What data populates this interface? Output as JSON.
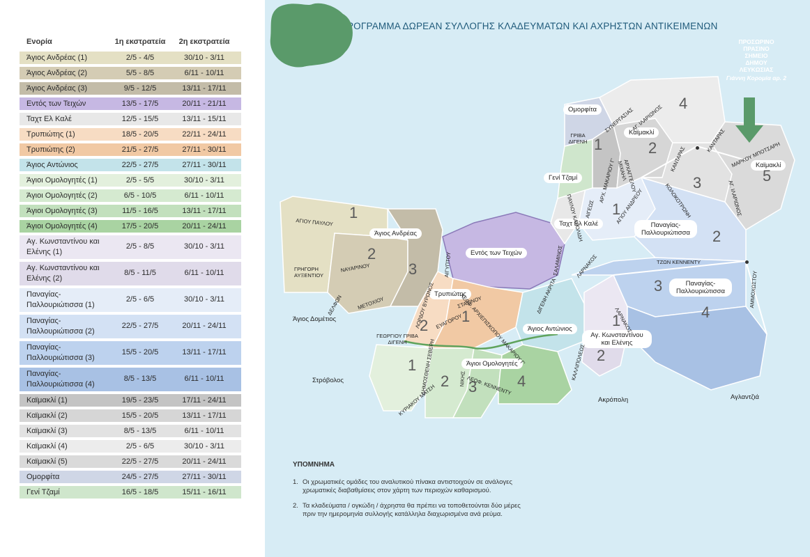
{
  "table": {
    "header": [
      "Ενορία",
      "1η εκστρατεία",
      "2η εκστρατεία"
    ],
    "rows": [
      {
        "parish": "Άγιος Ανδρέας (1)",
        "first": "2/5 - 4/5",
        "second": "30/10 - 3/11",
        "color": "#e4e0c4"
      },
      {
        "parish": "Άγιος Ανδρέας (2)",
        "first": "5/5 - 8/5",
        "second": "6/11 - 10/11",
        "color": "#d4ccb4"
      },
      {
        "parish": "Άγιος Ανδρέας (3)",
        "first": "9/5 - 12/5",
        "second": "13/11 - 17/11",
        "color": "#c3bca8"
      },
      {
        "parish": "Εντός των Τειχών",
        "first": "13/5 - 17/5",
        "second": "20/11 - 21/11",
        "color": "#c6b8e3"
      },
      {
        "parish": "Ταχτ Ελ Καλέ",
        "first": "12/5 - 15/5",
        "second": "13/11 - 15/11",
        "color": "#e8e8e8"
      },
      {
        "parish": "Τρυπιώτης (1)",
        "first": "18/5 - 20/5",
        "second": "22/11 - 24/11",
        "color": "#f7dcc3"
      },
      {
        "parish": "Τρυπιώτης (2)",
        "first": "21/5 - 27/5",
        "second": "27/11 - 30/11",
        "color": "#f1c9a4"
      },
      {
        "parish": "Άγιος Αντώνιος",
        "first": "22/5 - 27/5",
        "second": "27/11 - 30/11",
        "color": "#c3e3ea"
      },
      {
        "parish": "Άγιοι Ομολογητές (1)",
        "first": "2/5 - 5/5",
        "second": "30/10 - 3/11",
        "color": "#e3f0dd"
      },
      {
        "parish": "Άγιοι Ομολογητές (2)",
        "first": "6/5 - 10/5",
        "second": "6/11 - 10/11",
        "color": "#d5ead0"
      },
      {
        "parish": "Άγιοι Ομολογητές (3)",
        "first": "11/5 - 16/5",
        "second": "13/11 - 17/11",
        "color": "#c2e0bd"
      },
      {
        "parish": "Άγιοι Ομολογητές (4)",
        "first": "17/5 - 20/5",
        "second": "20/11 - 24/11",
        "color": "#a9d3a2"
      },
      {
        "parish": "Αγ. Κωνσταντίνου και Ελένης (1)",
        "first": "2/5 - 8/5",
        "second": "30/10 - 3/11",
        "color": "#ebe7f2"
      },
      {
        "parish": "Αγ. Κωνσταντίνου και Ελένης (2)",
        "first": "8/5 - 11/5",
        "second": "6/11 - 10/11",
        "color": "#e0dbea"
      },
      {
        "parish": "Παναγίας-Παλλουριώτισσα (1)",
        "first": "2/5 - 6/5",
        "second": "30/10 - 3/11",
        "color": "#e5edf8"
      },
      {
        "parish": "Παναγίας-Παλλουριώτισσα (2)",
        "first": "22/5 - 27/5",
        "second": "20/11 - 24/11",
        "color": "#d3e1f4"
      },
      {
        "parish": "Παναγίας-Παλλουριώτισσα (3)",
        "first": "15/5 - 20/5",
        "second": "13/11 - 17/11",
        "color": "#bdd2ee"
      },
      {
        "parish": "Παναγίας-Παλλουριώτισσα (4)",
        "first": "8/5 - 13/5",
        "second": "6/11 - 10/11",
        "color": "#a8c1e4"
      },
      {
        "parish": "Καϊμακλί (1)",
        "first": "19/5 - 23/5",
        "second": "17/11 - 24/11",
        "color": "#c4c4c4"
      },
      {
        "parish": "Καϊμακλί (2)",
        "first": "15/5 - 20/5",
        "second": "13/11 - 17/11",
        "color": "#d6d6d6"
      },
      {
        "parish": "Καϊμακλί (3)",
        "first": "8/5 - 13/5",
        "second": "6/11 - 10/11",
        "color": "#e2e2e2"
      },
      {
        "parish": "Καϊμακλί (4)",
        "first": "2/5 - 6/5",
        "second": "30/10 - 3/11",
        "color": "#ececec"
      },
      {
        "parish": "Καϊμακλί (5)",
        "first": "22/5 - 27/5",
        "second": "20/11 - 24/11",
        "color": "#dadada"
      },
      {
        "parish": "Ομορφίτα",
        "first": "24/5 - 27/5",
        "second": "27/11 - 30/11",
        "color": "#cfd6e6"
      },
      {
        "parish": "Γενί Τζαμί",
        "first": "16/5 - 18/5",
        "second": "15/11 - 16/11",
        "color": "#cfe6cc"
      }
    ]
  },
  "map": {
    "title": "ΠΡΟΓΡΑΜΜΑ ΔΩΡΕΑΝ ΣΥΛΛΟΓΗΣ ΚΛΑΔΕΥΜΑΤΩΝ ΚΑΙ ΑΧΡΗΣΤΩΝ ΑΝΤΙΚΕΙΜΕΝΩΝ",
    "green_point": {
      "lines": [
        "ΠΡΟΣΩΡΙΝΟ",
        "ΠΡΑΣΙΝΟ",
        "ΣΗΜΕΙΟ",
        "ΔΗΜΟΥ",
        "ΛΕΥΚΩΣΙΑΣ"
      ],
      "address": "Γιάννη Κορομία αρ. 2",
      "color": "#5a9a6a"
    },
    "area_labels": {
      "agios_andreas": "Άγιος Ανδρέας",
      "entos": "Εντός των Τειχών",
      "trypiotis": "Τρυπιώτης",
      "agios_antonios": "Άγιος Αντώνιος",
      "omologites": "Άγιοι Ομολογητές",
      "konstantinou": "Αγ. Κωνσταντίνου και Ελένης",
      "pallouriotissa_a": "Παναγίας-Παλλουριώτισσα",
      "pallouriotissa_b": "Παναγίας-Παλλουριώτισσα",
      "takht": "Ταχτ Ελ Καλέ",
      "kaimakli_a": "Καϊμακλί",
      "kaimakli_b": "Καϊμακλί",
      "geni": "Γενί Τζαμί",
      "omorfita": "Ομορφίτα"
    },
    "outer_labels": {
      "agios_dometios": "Άγιος Δομέτιος",
      "strovolos": "Στρόβολος",
      "akropoli": "Ακρόπολη",
      "aglantzia": "Αγλαντζιά"
    },
    "numbers": [
      "1",
      "2",
      "3",
      "1",
      "2",
      "3",
      "4",
      "1",
      "2",
      "1",
      "2",
      "3",
      "4",
      "1",
      "2",
      "1",
      "2",
      "3",
      "4",
      "5"
    ],
    "streets": {
      "agiou_pavlou": "ΑΓΙΟΥ ΠΑΥΛΟΥ",
      "grigori": "ΓΡΗΓΟΡΗ ΑΥΞΕΝΤΙΟΥ",
      "nayarinou": "ΝΑΥΑΡΙΝΟΥ",
      "delfon": "ΔΕΛΦΩΝ",
      "metochiou": "ΜΕΤΟΧΙΟΥ",
      "agiou_gymnou": "ΑΓΙΟΥ ΠΑΥΛΟΥ",
      "lordou": "ΛΟΡΔΟΥ ΒΥΡΩΝΟΣ",
      "evagorou": "ΕΥΑΓΟΡΟΥ",
      "stasinou": "ΣΤΑΣΙΝΟΥ",
      "arch_makariou": "ΛΕΩΦ. ΑΡΧΙΕΠΙΣΚΟΠΟΥ ΜΑΚΑΡΙΟΥ Γ'",
      "grigoriou": "ΓΕΩΡΓΙΟΥ ΓΡΙΒΑ ΔΙΓΕΝΗ",
      "dimosthenis": "ΔΗΜΟΣΘΕΝΗ ΣΕΒΕΡΗ",
      "nikis": "ΝΙΚΗΣ",
      "kyriakou": "ΚΥΡΙΑΚΟΥ ΜΑΤΣΗ",
      "kennenty_s": "ΛΕΩΦ. ΚΕΝΝΕΝΤΥ",
      "digeni_akrita": "ΔΙΓΕΝΗ ΑΚΡΙΤΑ",
      "larnakos_a": "ΛΑΡΝΑΚΟΣ",
      "larnakos_b": "ΛΑΡΝΑΚΟΣ",
      "kallipoleos": "ΚΑΛΛΙΠΟΛΕΩΣ",
      "salaminos": "ΣΑΛΑΜΙΝΟΣ",
      "tzon_kennenty": "ΤΖΩΝ ΚΕΝΝΕΝΤΥ",
      "ammochostou": "ΑΜΜΟΧΩΣΤΟΥ",
      "agiou_andreou": "ΑΓΙΟΥ ΑΝΔΡΕΟΥ",
      "kolokotroni": "ΚΟΛΟΚΟΤΡΩΝΗ",
      "kantaras_a": "ΚΑΝΤΑΡΑΣ",
      "kantaras_b": "ΚΑΝΤΑΡΑΣ",
      "markou": "ΜΑΡΚΟΥ ΜΠΟΤΣΑΡΗ",
      "ag_ilarionos_a": "ΑΓ. ΙΛΑΡΙΩΝΟΣ",
      "ag_ilarionos_b": "ΑΓ. ΙΛΑΡΙΩΝΟΣ",
      "synergasias": "ΣΥΝΕΡΓΑΣΙΑΣ",
      "griva_digeni": "ΓΡΙΒΑ ΔΙΓΕΝΗ",
      "pavlou": "ΠΑΥΛΟΥ ΚΑΡΟΛΙΔΗ",
      "arch_makariou_n": "ΑΡΧ. ΜΑΚΑΡΙΟΥ Γ'",
      "archaggelou": "ΑΡΧΑΓΓΕΛΟΥ ΜΙΧΑΗΛ",
      "agygtou": "ΑΙΓΥΠΤΟΥ",
      "aigeos": "ΑΙΓΕΩΣ"
    }
  },
  "legend": {
    "title": "ΥΠΟΜΝΗΜΑ",
    "items": [
      {
        "num": "1.",
        "text": "Οι χρωματικές ομάδες του αναλυτικού πίνακα αντιστοιχούν σε ανάλογες χρωματικές διαβαθμίσεις στον χάρτη των περιοχών καθαρισμού."
      },
      {
        "num": "2.",
        "text": "Τα κλαδεύματα / ογκώδη / άχρηστα θα πρέπει να τοποθετούνται δύο μέρες πριν την ημερομηνία συλλογής κατάλληλα διαχωρισμένα ανά ρεύμα."
      }
    ]
  }
}
